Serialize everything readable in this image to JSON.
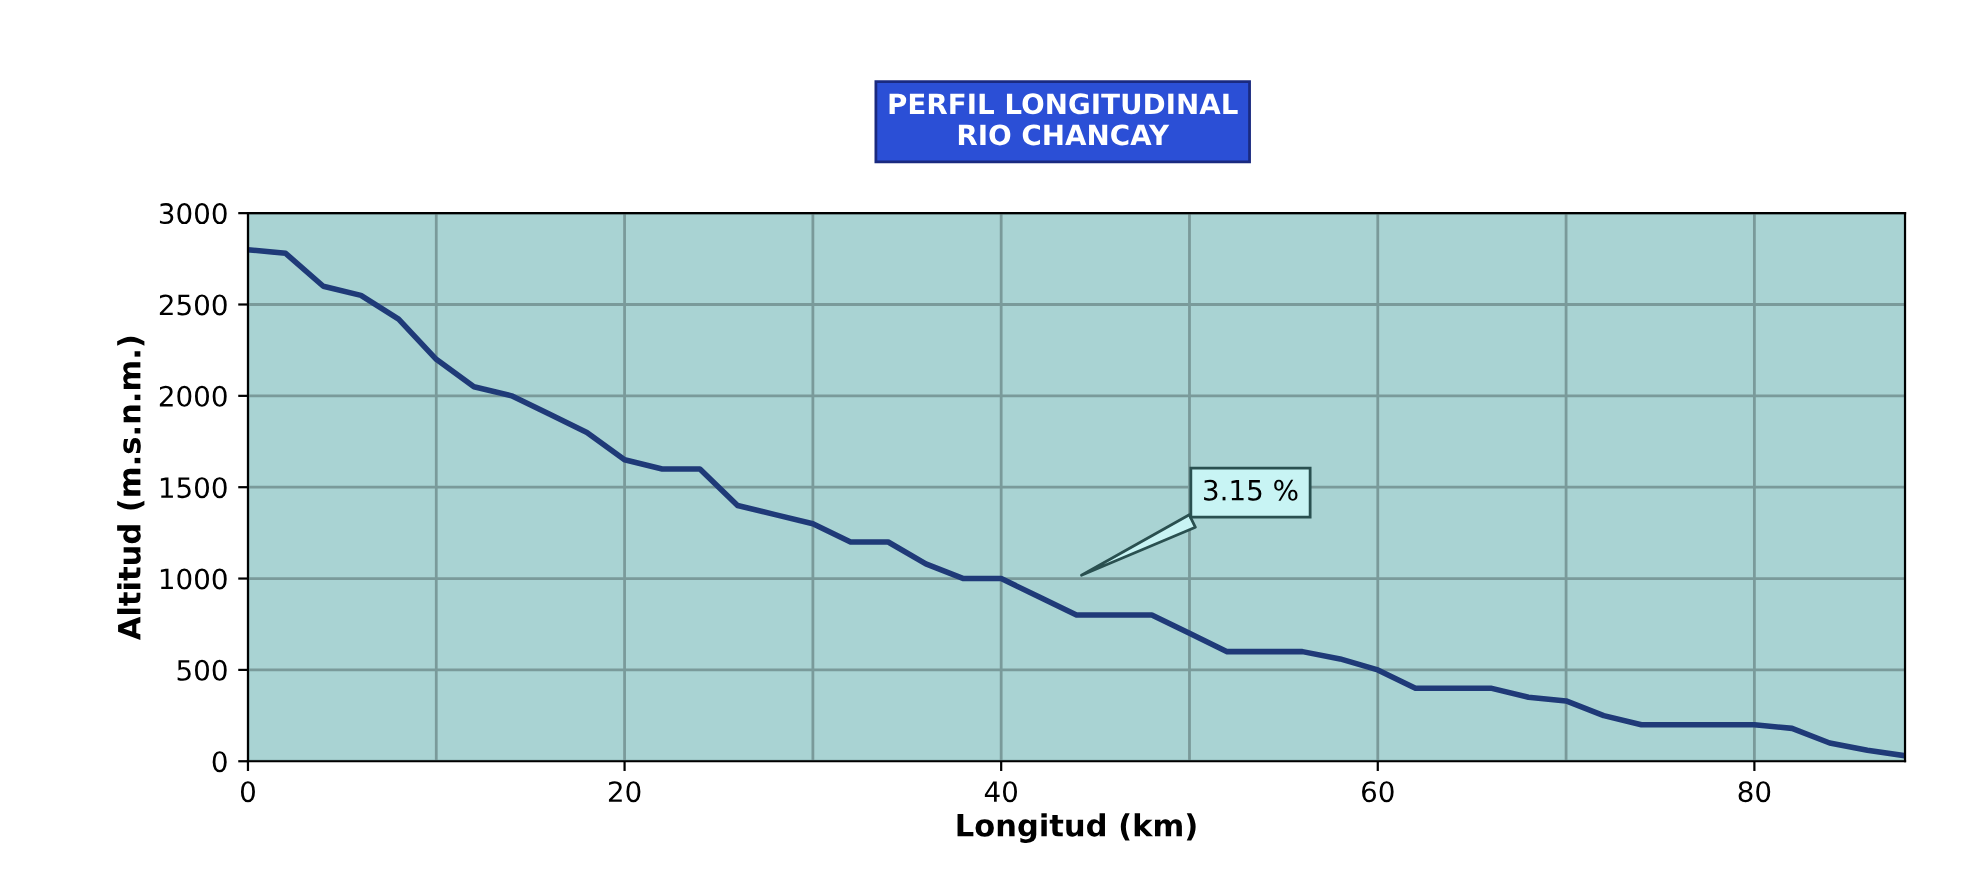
{
  "chart_data": {
    "type": "line",
    "title": "PERFIL LONGITUDINAL\nRIO CHANCAY",
    "xlabel": "Longitud (km)",
    "ylabel": "Altitud (m.s.n.m.)",
    "x": [
      0,
      2,
      4,
      6,
      8,
      10,
      12,
      14,
      16,
      18,
      20,
      22,
      24,
      26,
      28,
      30,
      32,
      34,
      36,
      38,
      40,
      42,
      44,
      46,
      48,
      50,
      52,
      54,
      56,
      58,
      60,
      62,
      64,
      66,
      68,
      70,
      72,
      74,
      76,
      78,
      80,
      82,
      84,
      86,
      88
    ],
    "series": [
      {
        "color": "#1f3a78",
        "values": [
          2800,
          2780,
          2600,
          2550,
          2420,
          2200,
          2050,
          2000,
          1900,
          1800,
          1650,
          1600,
          1600,
          1400,
          1350,
          1300,
          1200,
          1200,
          1080,
          1000,
          1000,
          900,
          800,
          800,
          800,
          700,
          600,
          600,
          600,
          560,
          500,
          400,
          400,
          400,
          350,
          330,
          250,
          200,
          200,
          200,
          200,
          180,
          100,
          60,
          30
        ]
      }
    ],
    "xlim": [
      0,
      88
    ],
    "ylim": [
      0,
      3000
    ],
    "xticks": [
      0,
      {
        "value": 10,
        "label": null
      },
      20,
      {
        "value": 30,
        "label": null
      },
      40,
      {
        "value": 50,
        "label": null
      },
      60,
      {
        "value": 70,
        "label": null
      },
      80
    ],
    "yticks": [
      0,
      500,
      1000,
      1500,
      2000,
      2500,
      3000
    ],
    "grid": true,
    "annotations": [
      "3.15 %"
    ]
  }
}
